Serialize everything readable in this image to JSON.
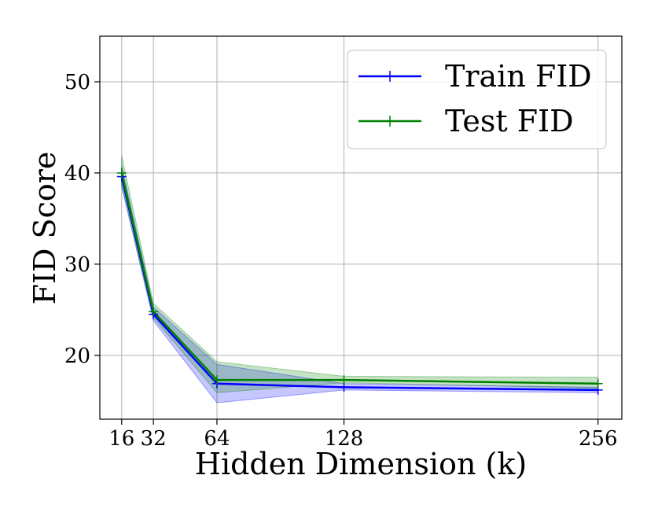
{
  "chart_data": {
    "type": "line",
    "title": "",
    "xlabel": "Hidden Dimension (k)",
    "ylabel": "FID Score",
    "x": [
      16,
      32,
      64,
      128,
      256
    ],
    "x_tick_labels": [
      "16",
      "32",
      "64",
      "128",
      "256"
    ],
    "xlim": [
      5,
      268
    ],
    "ylim": [
      13,
      55
    ],
    "y_ticks": [
      20,
      30,
      40,
      50
    ],
    "y_tick_labels": [
      "20",
      "30",
      "40",
      "50"
    ],
    "grid": true,
    "legend": "top-right",
    "series": [
      {
        "name": "Train FID",
        "color": "#0000ff",
        "values": [
          39.6,
          24.5,
          16.9,
          16.5,
          16.2
        ],
        "lower": [
          38.5,
          23.8,
          14.8,
          16.2,
          15.9
        ],
        "upper": [
          40.8,
          25.3,
          19.0,
          16.9,
          16.5
        ]
      },
      {
        "name": "Test FID",
        "color": "#008000",
        "values": [
          40.0,
          24.8,
          17.3,
          17.3,
          16.9
        ],
        "lower": [
          38.6,
          24.1,
          15.9,
          17.0,
          16.4
        ],
        "upper": [
          41.9,
          25.7,
          19.3,
          17.7,
          17.6
        ]
      }
    ]
  }
}
